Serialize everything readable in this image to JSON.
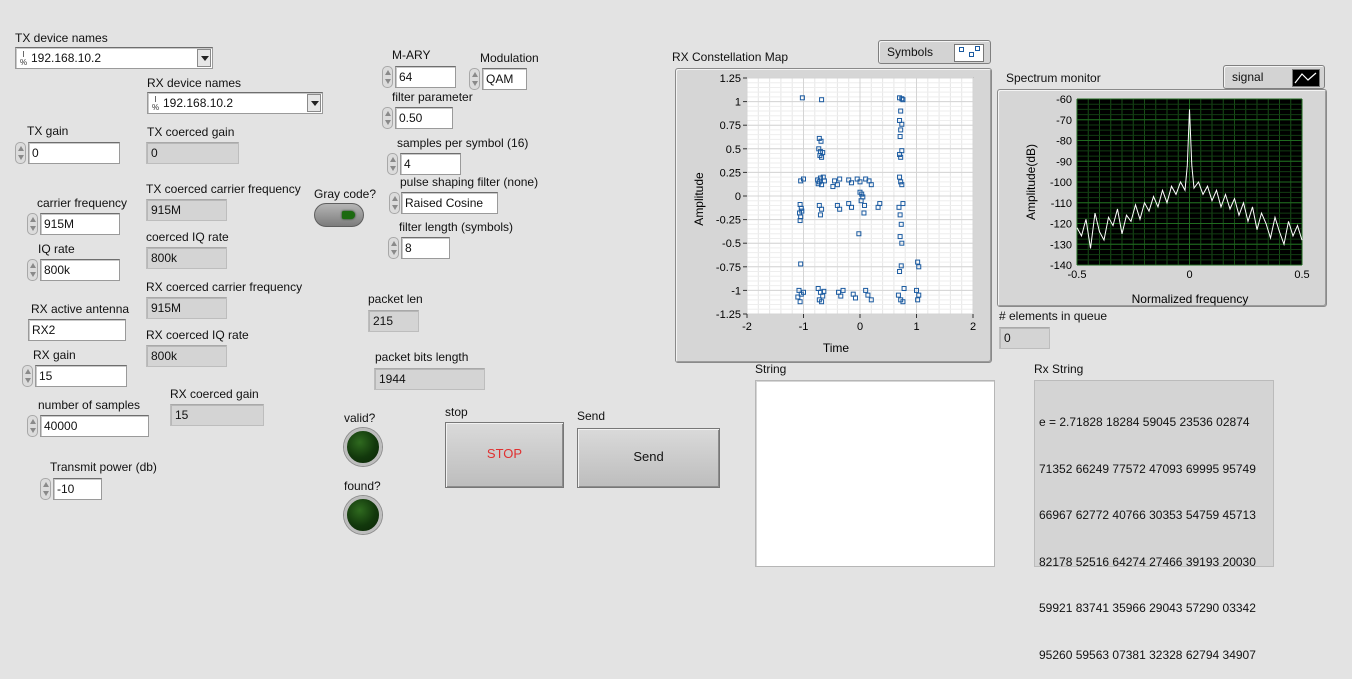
{
  "tx": {
    "device_names_label": "TX device names",
    "device_name_value": "192.168.10.2",
    "gain_label": "TX gain",
    "gain_value": "0",
    "carrier_freq_label": "carrier frequency",
    "carrier_freq_value": "915M",
    "iq_rate_label": "IQ rate",
    "iq_rate_value": "800k",
    "coerced_gain_label": "TX coerced gain",
    "coerced_gain_value": "0",
    "coerced_carrier_label": "TX coerced carrier frequency",
    "coerced_carrier_value": "915M",
    "coerced_iq_label": "coerced IQ rate",
    "coerced_iq_value": "800k",
    "power_label": "Transmit power (db)",
    "power_value": "-10"
  },
  "rx": {
    "device_names_label": "RX device names",
    "device_name_value": "192.168.10.2",
    "antenna_label": "RX active antenna",
    "antenna_value": "RX2",
    "gain_label": "RX gain",
    "gain_value": "15",
    "samples_label": "number of samples",
    "samples_value": "40000",
    "coerced_carrier_label": "RX coerced carrier frequency",
    "coerced_carrier_value": "915M",
    "coerced_iq_label": "RX coerced IQ rate",
    "coerced_iq_value": "800k",
    "coerced_gain_label": "RX coerced gain",
    "coerced_gain_value": "15"
  },
  "mod": {
    "mary_label": "M-ARY",
    "mary_value": "64",
    "modulation_label": "Modulation",
    "modulation_value": "QAM",
    "filter_param_label": "filter parameter",
    "filter_param_value": "0.50",
    "sps_label": "samples per symbol (16)",
    "sps_value": "4",
    "pulse_label": "pulse shaping filter (none)",
    "pulse_value": "Raised Cosine",
    "filter_len_label": "filter length (symbols)",
    "filter_len_value": "8",
    "gray_label": "Gray code?"
  },
  "packet": {
    "len_label": "packet len",
    "len_value": "215",
    "bits_label": "packet bits length",
    "bits_value": "1944"
  },
  "status": {
    "valid_label": "valid?",
    "found_label": "found?"
  },
  "buttons": {
    "stop_caption": "stop",
    "stop_label": "STOP",
    "send_caption": "Send",
    "send_label": "Send"
  },
  "constellation": {
    "title": "RX Constellation Map",
    "legend": "Symbols",
    "xlabel": "Time",
    "ylabel": "Amplitude",
    "x_ticks": [
      "-2",
      "-1",
      "0",
      "1",
      "2"
    ],
    "y_ticks": [
      "1.25",
      "1",
      "0.75",
      "0.5",
      "0.25",
      "0",
      "-0.25",
      "-0.5",
      "-0.75",
      "-1",
      "-1.25"
    ]
  },
  "spectrum": {
    "title": "Spectrum monitor",
    "legend": "signal",
    "xlabel": "Normalized frequency",
    "ylabel": "Amplitude(dB)",
    "x_ticks": [
      "-0.5",
      "0",
      "0.5"
    ],
    "y_ticks": [
      "-60",
      "-70",
      "-80",
      "-90",
      "-100",
      "-110",
      "-120",
      "-130",
      "-140"
    ]
  },
  "queue": {
    "label": "# elements in queue",
    "value": "0"
  },
  "string_label": "String",
  "rx_string": {
    "label": "Rx String",
    "lines": [
      "e = 2.71828 18284 59045 23536 02874",
      "71352 66249 77572 47093 69995 95749",
      "66967 62772 40766 30353 54759 45713",
      "82178 52516 64274 27466 39193 20030",
      "59921 83741 35966 29043 57290 03342",
      "95260 59563 07381 32328 62794 34907"
    ]
  },
  "chart_data": [
    {
      "type": "scatter",
      "title": "RX Constellation Map",
      "xlabel": "Time",
      "ylabel": "Amplitude",
      "xlim": [
        -2,
        2
      ],
      "ylim": [
        -1.25,
        1.25
      ],
      "grid": true,
      "legend_position": "top-right",
      "series": [
        {
          "name": "Symbols",
          "points": [
            [
              -1.02,
              1.04
            ],
            [
              -0.68,
              1.02
            ],
            [
              -0.72,
              0.61
            ],
            [
              -0.69,
              0.58
            ],
            [
              -0.73,
              0.5
            ],
            [
              -0.7,
              0.47
            ],
            [
              -0.66,
              0.46
            ],
            [
              -0.71,
              0.43
            ],
            [
              -0.68,
              0.41
            ],
            [
              -0.75,
              0.17
            ],
            [
              -0.72,
              0.15
            ],
            [
              -0.7,
              0.19
            ],
            [
              -0.65,
              0.2
            ],
            [
              -0.74,
              0.13
            ],
            [
              -0.68,
              0.12
            ],
            [
              -0.63,
              0.16
            ],
            [
              -1.05,
              0.16
            ],
            [
              -1.0,
              0.18
            ],
            [
              -0.45,
              0.16
            ],
            [
              -0.4,
              0.12
            ],
            [
              -0.48,
              0.1
            ],
            [
              -0.36,
              0.18
            ],
            [
              -0.2,
              0.17
            ],
            [
              -0.15,
              0.14
            ],
            [
              -0.05,
              0.18
            ],
            [
              0.0,
              0.15
            ],
            [
              0.1,
              0.18
            ],
            [
              0.16,
              0.16
            ],
            [
              0.2,
              0.12
            ],
            [
              0.7,
              0.2
            ],
            [
              0.72,
              0.15
            ],
            [
              0.74,
              0.12
            ],
            [
              0.7,
              0.8
            ],
            [
              0.74,
              0.76
            ],
            [
              0.72,
              0.7
            ],
            [
              0.71,
              0.63
            ],
            [
              0.74,
              0.48
            ],
            [
              0.7,
              0.44
            ],
            [
              0.72,
              0.41
            ],
            [
              0.72,
              0.9
            ],
            [
              0.7,
              1.04
            ],
            [
              0.74,
              1.03
            ],
            [
              0.76,
              1.02
            ],
            [
              0.0,
              0.04
            ],
            [
              0.03,
              0.02
            ],
            [
              0.05,
              -0.01
            ],
            [
              0.02,
              -0.05
            ],
            [
              -1.06,
              -0.09
            ],
            [
              -1.04,
              -0.13
            ],
            [
              -1.07,
              -0.18
            ],
            [
              -1.05,
              -0.22
            ],
            [
              -1.03,
              -0.16
            ],
            [
              -1.06,
              -0.26
            ],
            [
              -0.72,
              -0.1
            ],
            [
              -0.68,
              -0.14
            ],
            [
              -0.7,
              -0.2
            ],
            [
              -0.4,
              -0.1
            ],
            [
              -0.36,
              -0.14
            ],
            [
              -0.2,
              -0.08
            ],
            [
              -0.15,
              -0.12
            ],
            [
              0.07,
              -0.18
            ],
            [
              0.08,
              -0.1
            ],
            [
              0.32,
              -0.12
            ],
            [
              0.35,
              -0.08
            ],
            [
              0.69,
              -0.12
            ],
            [
              0.71,
              -0.2
            ],
            [
              0.73,
              -0.3
            ],
            [
              0.76,
              -0.08
            ],
            [
              0.71,
              -0.43
            ],
            [
              0.74,
              -0.5
            ],
            [
              0.73,
              -0.74
            ],
            [
              0.7,
              -0.8
            ],
            [
              1.02,
              -0.7
            ],
            [
              1.04,
              -0.75
            ],
            [
              -1.05,
              -0.72
            ],
            [
              -0.02,
              -0.4
            ],
            [
              -1.08,
              -1.0
            ],
            [
              -1.04,
              -1.04
            ],
            [
              -1.1,
              -1.07
            ],
            [
              -1.06,
              -1.12
            ],
            [
              -1.0,
              -1.02
            ],
            [
              -0.74,
              -0.98
            ],
            [
              -0.7,
              -1.02
            ],
            [
              -0.66,
              -1.06
            ],
            [
              -0.72,
              -1.1
            ],
            [
              -0.68,
              -1.12
            ],
            [
              -0.64,
              -1.01
            ],
            [
              -0.38,
              -1.02
            ],
            [
              -0.34,
              -1.06
            ],
            [
              -0.3,
              -1.0
            ],
            [
              -0.12,
              -1.04
            ],
            [
              -0.08,
              -1.08
            ],
            [
              0.1,
              -1.0
            ],
            [
              0.14,
              -1.05
            ],
            [
              0.2,
              -1.1
            ],
            [
              0.68,
              -1.05
            ],
            [
              0.72,
              -1.1
            ],
            [
              0.78,
              -0.98
            ],
            [
              1.0,
              -1.0
            ],
            [
              1.04,
              -1.05
            ],
            [
              1.02,
              -1.1
            ],
            [
              0.76,
              -1.12
            ]
          ]
        }
      ]
    },
    {
      "type": "line",
      "title": "Spectrum monitor",
      "xlabel": "Normalized frequency",
      "ylabel": "Amplitude(dB)",
      "xlim": [
        -0.5,
        0.5
      ],
      "ylim": [
        -140,
        -60
      ],
      "grid": true,
      "legend_position": "top-right",
      "series": [
        {
          "name": "signal",
          "x": [
            -0.5,
            -0.48,
            -0.46,
            -0.44,
            -0.42,
            -0.4,
            -0.38,
            -0.36,
            -0.34,
            -0.32,
            -0.3,
            -0.28,
            -0.26,
            -0.24,
            -0.22,
            -0.2,
            -0.18,
            -0.16,
            -0.14,
            -0.12,
            -0.1,
            -0.08,
            -0.06,
            -0.04,
            -0.02,
            -0.01,
            0,
            0.01,
            0.02,
            0.04,
            0.06,
            0.08,
            0.1,
            0.12,
            0.14,
            0.16,
            0.18,
            0.2,
            0.22,
            0.24,
            0.26,
            0.28,
            0.3,
            0.32,
            0.34,
            0.36,
            0.38,
            0.4,
            0.42,
            0.44,
            0.46,
            0.48,
            0.5
          ],
          "y": [
            -122,
            -126,
            -118,
            -132,
            -115,
            -124,
            -128,
            -117,
            -121,
            -113,
            -125,
            -116,
            -119,
            -111,
            -118,
            -110,
            -114,
            -107,
            -112,
            -104,
            -110,
            -102,
            -106,
            -100,
            -104,
            -92,
            -65,
            -92,
            -103,
            -100,
            -106,
            -102,
            -109,
            -104,
            -112,
            -106,
            -113,
            -108,
            -116,
            -110,
            -119,
            -112,
            -123,
            -115,
            -120,
            -127,
            -117,
            -124,
            -130,
            -119,
            -126,
            -121,
            -128
          ]
        }
      ]
    }
  ]
}
